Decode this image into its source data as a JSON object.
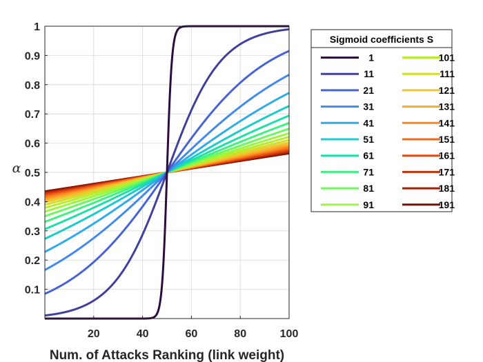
{
  "chart_data": {
    "type": "line",
    "title": "",
    "xlabel": "Num. of Attacks Ranking (link weight)",
    "ylabel": "α",
    "xlim": [
      0,
      100
    ],
    "ylim": [
      0,
      1
    ],
    "xticks": [
      20,
      40,
      60,
      80,
      100
    ],
    "yticks": [
      0.1,
      0.2,
      0.3,
      0.4,
      0.5,
      0.6,
      0.7,
      0.8,
      0.9,
      1
    ],
    "grid": true,
    "function": "alpha = 1 / (1 + exp(-(x - 50) / S))",
    "legend": {
      "title": "Sigmoid coefficients S",
      "placement": "outside-right-top",
      "columns": 2
    },
    "series": [
      {
        "name": "1",
        "S": 1,
        "color": "#2c0b3e"
      },
      {
        "name": "11",
        "S": 11,
        "color": "#3f3f9c"
      },
      {
        "name": "21",
        "S": 21,
        "color": "#4564d2"
      },
      {
        "name": "31",
        "S": 31,
        "color": "#4389ea"
      },
      {
        "name": "41",
        "S": 41,
        "color": "#2fabe8"
      },
      {
        "name": "51",
        "S": 51,
        "color": "#1dcbcb"
      },
      {
        "name": "61",
        "S": 61,
        "color": "#1de0a6"
      },
      {
        "name": "71",
        "S": 71,
        "color": "#3ef181"
      },
      {
        "name": "81",
        "S": 81,
        "color": "#6ef75f"
      },
      {
        "name": "91",
        "S": 91,
        "color": "#9cf63e"
      },
      {
        "name": "101",
        "S": 101,
        "color": "#b8ec2e"
      },
      {
        "name": "111",
        "S": 111,
        "color": "#d4dc2c"
      },
      {
        "name": "121",
        "S": 121,
        "color": "#edc72c"
      },
      {
        "name": "131",
        "S": 131,
        "color": "#fba92b"
      },
      {
        "name": "141",
        "S": 141,
        "color": "#fb8a22"
      },
      {
        "name": "151",
        "S": 151,
        "color": "#f2681a"
      },
      {
        "name": "161",
        "S": 161,
        "color": "#e04a10"
      },
      {
        "name": "171",
        "S": 171,
        "color": "#c73108"
      },
      {
        "name": "181",
        "S": 181,
        "color": "#a51e06"
      },
      {
        "name": "191",
        "S": 191,
        "color": "#7a0d03"
      }
    ]
  }
}
